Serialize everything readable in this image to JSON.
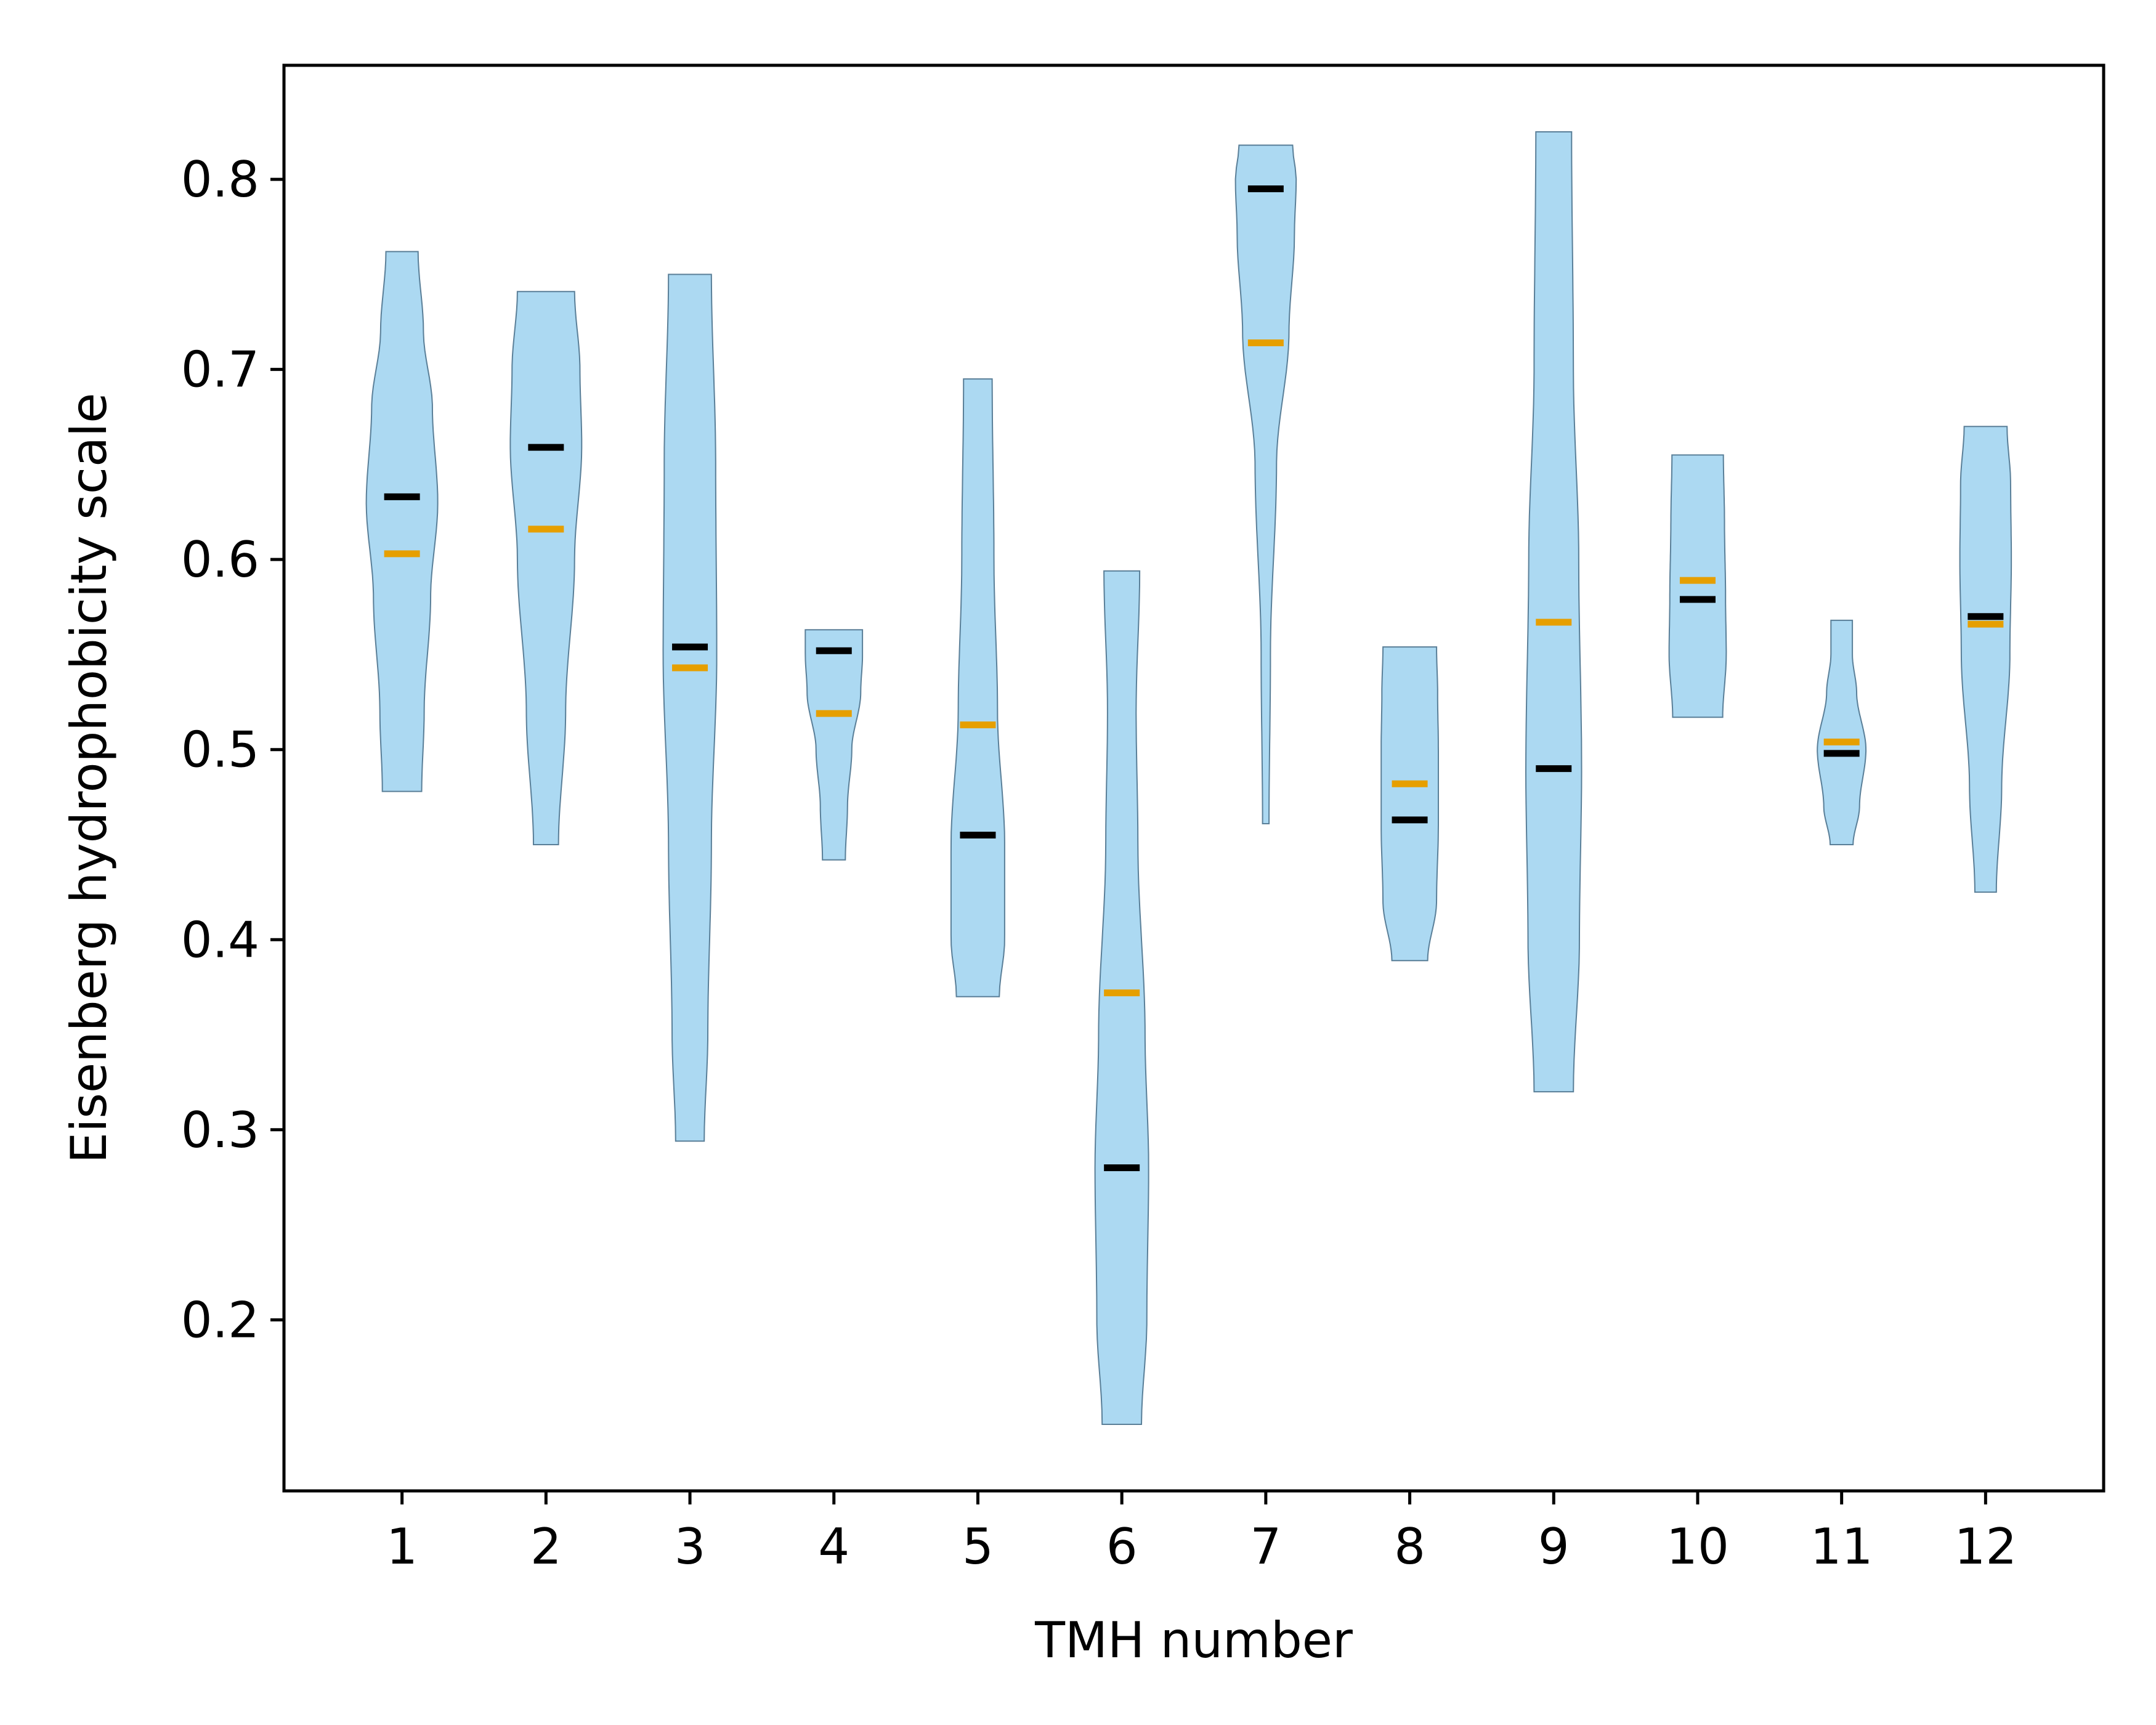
{
  "chart_data": {
    "type": "violin",
    "title": "",
    "xlabel": "TMH number",
    "ylabel": "Eisenberg hydrophobicity scale",
    "xlim": [
      0.18,
      12.82
    ],
    "ylim": [
      0.11,
      0.86
    ],
    "grid": false,
    "legend": "none",
    "categories": [
      "1",
      "2",
      "3",
      "4",
      "5",
      "6",
      "7",
      "8",
      "9",
      "10",
      "11",
      "12"
    ],
    "y_ticks": [
      "0.2",
      "0.3",
      "0.4",
      "0.5",
      "0.6",
      "0.7",
      "0.8"
    ],
    "colors": {
      "violin_fill": "#acd9f2",
      "violin_edge": "#5a7f98",
      "median_marker": "#000000",
      "mean_marker": "#e69f00"
    },
    "violins": [
      {
        "x": 1,
        "min": 0.478,
        "max": 0.762,
        "median": 0.633,
        "mean": 0.603,
        "profile": [
          [
            0.478,
            0.55
          ],
          [
            0.52,
            0.62
          ],
          [
            0.58,
            0.8
          ],
          [
            0.63,
            1.0
          ],
          [
            0.68,
            0.85
          ],
          [
            0.72,
            0.6
          ],
          [
            0.762,
            0.45
          ]
        ]
      },
      {
        "x": 2,
        "min": 0.45,
        "max": 0.741,
        "median": 0.659,
        "mean": 0.616,
        "profile": [
          [
            0.45,
            0.35
          ],
          [
            0.52,
            0.55
          ],
          [
            0.6,
            0.8
          ],
          [
            0.66,
            1.0
          ],
          [
            0.7,
            0.95
          ],
          [
            0.741,
            0.8
          ]
        ]
      },
      {
        "x": 3,
        "min": 0.294,
        "max": 0.75,
        "median": 0.554,
        "mean": 0.543,
        "profile": [
          [
            0.294,
            0.4
          ],
          [
            0.35,
            0.5
          ],
          [
            0.45,
            0.6
          ],
          [
            0.55,
            0.75
          ],
          [
            0.65,
            0.72
          ],
          [
            0.75,
            0.6
          ]
        ]
      },
      {
        "x": 4,
        "min": 0.442,
        "max": 0.563,
        "median": 0.552,
        "mean": 0.519,
        "profile": [
          [
            0.442,
            0.32
          ],
          [
            0.47,
            0.38
          ],
          [
            0.5,
            0.5
          ],
          [
            0.53,
            0.75
          ],
          [
            0.55,
            0.8
          ],
          [
            0.563,
            0.8
          ]
        ]
      },
      {
        "x": 5,
        "min": 0.37,
        "max": 0.695,
        "median": 0.455,
        "mean": 0.513,
        "profile": [
          [
            0.37,
            0.6
          ],
          [
            0.4,
            0.75
          ],
          [
            0.45,
            0.75
          ],
          [
            0.52,
            0.55
          ],
          [
            0.6,
            0.45
          ],
          [
            0.695,
            0.4
          ]
        ]
      },
      {
        "x": 6,
        "min": 0.145,
        "max": 0.594,
        "median": 0.28,
        "mean": 0.372,
        "profile": [
          [
            0.145,
            0.55
          ],
          [
            0.2,
            0.7
          ],
          [
            0.28,
            0.75
          ],
          [
            0.35,
            0.65
          ],
          [
            0.45,
            0.45
          ],
          [
            0.52,
            0.4
          ],
          [
            0.594,
            0.5
          ]
        ]
      },
      {
        "x": 7,
        "min": 0.461,
        "max": 0.818,
        "median": 0.795,
        "mean": 0.714,
        "profile": [
          [
            0.461,
            0.09
          ],
          [
            0.55,
            0.13
          ],
          [
            0.65,
            0.3
          ],
          [
            0.72,
            0.65
          ],
          [
            0.77,
            0.8
          ],
          [
            0.8,
            0.85
          ],
          [
            0.818,
            0.75
          ]
        ]
      },
      {
        "x": 8,
        "min": 0.389,
        "max": 0.554,
        "median": 0.463,
        "mean": 0.482,
        "profile": [
          [
            0.389,
            0.5
          ],
          [
            0.42,
            0.75
          ],
          [
            0.46,
            0.8
          ],
          [
            0.5,
            0.8
          ],
          [
            0.53,
            0.78
          ],
          [
            0.554,
            0.75
          ]
        ]
      },
      {
        "x": 9,
        "min": 0.32,
        "max": 0.825,
        "median": 0.49,
        "mean": 0.567,
        "profile": [
          [
            0.32,
            0.55
          ],
          [
            0.4,
            0.72
          ],
          [
            0.49,
            0.78
          ],
          [
            0.6,
            0.7
          ],
          [
            0.7,
            0.55
          ],
          [
            0.825,
            0.5
          ]
        ]
      },
      {
        "x": 10,
        "min": 0.517,
        "max": 0.655,
        "median": 0.579,
        "mean": 0.589,
        "profile": [
          [
            0.517,
            0.7
          ],
          [
            0.55,
            0.8
          ],
          [
            0.58,
            0.78
          ],
          [
            0.62,
            0.75
          ],
          [
            0.655,
            0.72
          ]
        ]
      },
      {
        "x": 11,
        "min": 0.45,
        "max": 0.568,
        "median": 0.498,
        "mean": 0.504,
        "profile": [
          [
            0.45,
            0.32
          ],
          [
            0.47,
            0.5
          ],
          [
            0.5,
            0.68
          ],
          [
            0.53,
            0.42
          ],
          [
            0.55,
            0.3
          ],
          [
            0.568,
            0.3
          ]
        ]
      },
      {
        "x": 12,
        "min": 0.425,
        "max": 0.67,
        "median": 0.57,
        "mean": 0.566,
        "profile": [
          [
            0.425,
            0.3
          ],
          [
            0.48,
            0.45
          ],
          [
            0.55,
            0.68
          ],
          [
            0.6,
            0.72
          ],
          [
            0.64,
            0.7
          ],
          [
            0.67,
            0.6
          ]
        ]
      }
    ]
  }
}
